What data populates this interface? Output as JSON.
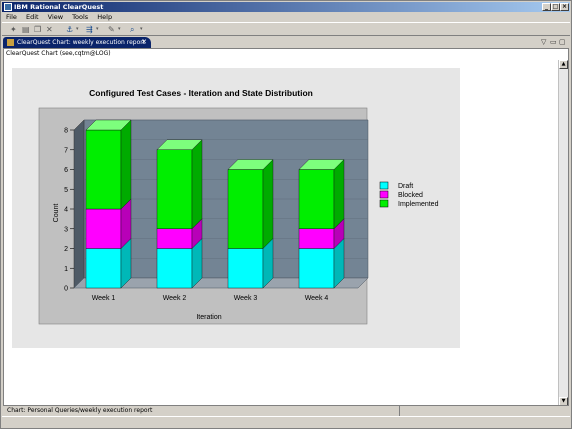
{
  "window": {
    "title": "IBM Rational ClearQuest",
    "min_glyph": "_",
    "max_glyph": "□",
    "close_glyph": "×"
  },
  "menu": {
    "items": [
      "File",
      "Edit",
      "View",
      "Tools",
      "Help"
    ]
  },
  "toolbar": {
    "icons": [
      "new-icon",
      "save-icon",
      "copy-icon",
      "delete-icon",
      "anchor-icon",
      "export-icon",
      "pencil-icon",
      "find-icon"
    ]
  },
  "tab": {
    "label": "ClearQuest Chart: weekly execution report",
    "close": "✕"
  },
  "view_buttons": {
    "minimize": "▽",
    "restore": "▭",
    "maximize": "▢"
  },
  "content": {
    "label": "ClearQuest Chart (see,cqtm@LOG)"
  },
  "status": {
    "text": "Chart: Personal Queries/weekly execution report"
  },
  "colors": {
    "draft": "#00ffff",
    "blocked": "#ff00ff",
    "implemented": "#00ee00",
    "plot_bg": "#738494",
    "panel_bg": "#e6e6e6",
    "frame_bg": "#c0c0c0"
  },
  "chart_data": {
    "type": "bar",
    "stacked": true,
    "three_d": true,
    "title": "Configured Test Cases - Iteration and State Distribution",
    "xlabel": "Iteration",
    "ylabel": "Count",
    "ylim": [
      0,
      8
    ],
    "yticks": [
      "0",
      "1",
      "2",
      "3",
      "4",
      "5",
      "6",
      "7",
      "8"
    ],
    "categories": [
      "Week 1",
      "Week 2",
      "Week 3",
      "Week 4"
    ],
    "series": [
      {
        "name": "Draft",
        "values": [
          2,
          2,
          2,
          2
        ]
      },
      {
        "name": "Blocked",
        "values": [
          2,
          1,
          0,
          1
        ]
      },
      {
        "name": "Implemented",
        "values": [
          4,
          4,
          4,
          3
        ]
      }
    ],
    "legend": "right"
  }
}
